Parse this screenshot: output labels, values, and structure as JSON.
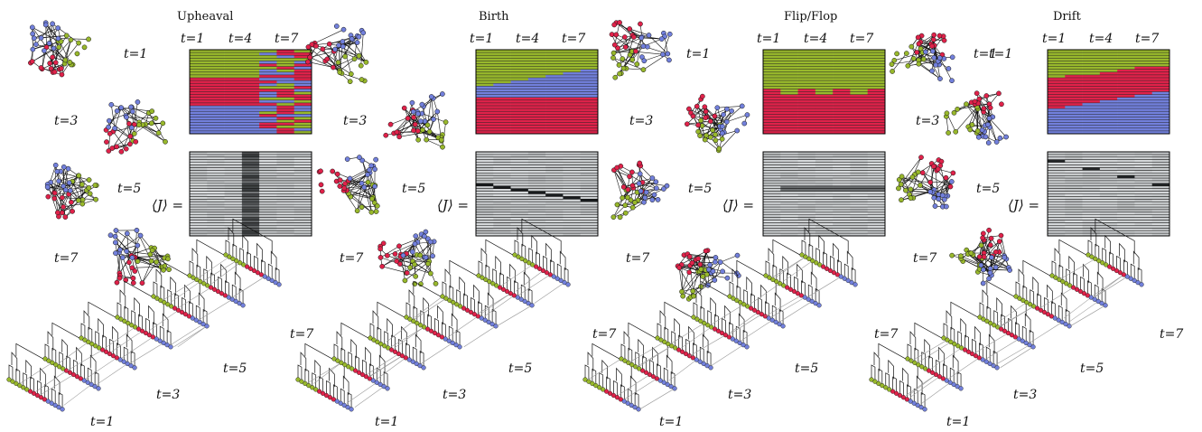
{
  "colors": {
    "green": "#98b82c",
    "red": "#e0224a",
    "blue": "#7280dc",
    "edge": "#111111",
    "cross_edge": "#9a9a9a"
  },
  "time_prefix": "t",
  "time_eq": "=",
  "j_label": "⟨J⟩ =",
  "panels": [
    {
      "title": "Upheaval",
      "col_labels": [
        "t=1",
        "t=4",
        "t=7"
      ],
      "network_labels": [
        "t=1",
        "t=3",
        "t=5",
        "t=7"
      ],
      "tree_labels": [
        "t=1",
        "t=3",
        "t=5",
        "t=7"
      ],
      "stripe_pattern": "upheaval"
    },
    {
      "title": "Birth",
      "col_labels": [
        "t=1",
        "t=4",
        "t=7"
      ],
      "network_labels": [
        "t=1",
        "t=3",
        "t=5",
        "t=7"
      ],
      "tree_labels": [
        "t=1",
        "t=3",
        "t=5",
        "t=7"
      ],
      "stripe_pattern": "birth"
    },
    {
      "title": "Flip/Flop",
      "col_labels": [
        "t=1",
        "t=4",
        "t=7"
      ],
      "network_labels": [
        "t=1",
        "t=3",
        "t=5",
        "t=7"
      ],
      "tree_labels": [
        "t=1",
        "t=3",
        "t=5",
        "t=7"
      ],
      "stripe_pattern": "flipflop"
    },
    {
      "title": "Drift",
      "col_labels": [
        "t=1",
        "t=4",
        "t=7"
      ],
      "network_labels": [
        "t=1",
        "t=3",
        "t=5",
        "t=7"
      ],
      "tree_labels": [
        "t=1",
        "t=3",
        "t=5",
        "t=7"
      ],
      "stripe_pattern": "drift"
    }
  ]
}
